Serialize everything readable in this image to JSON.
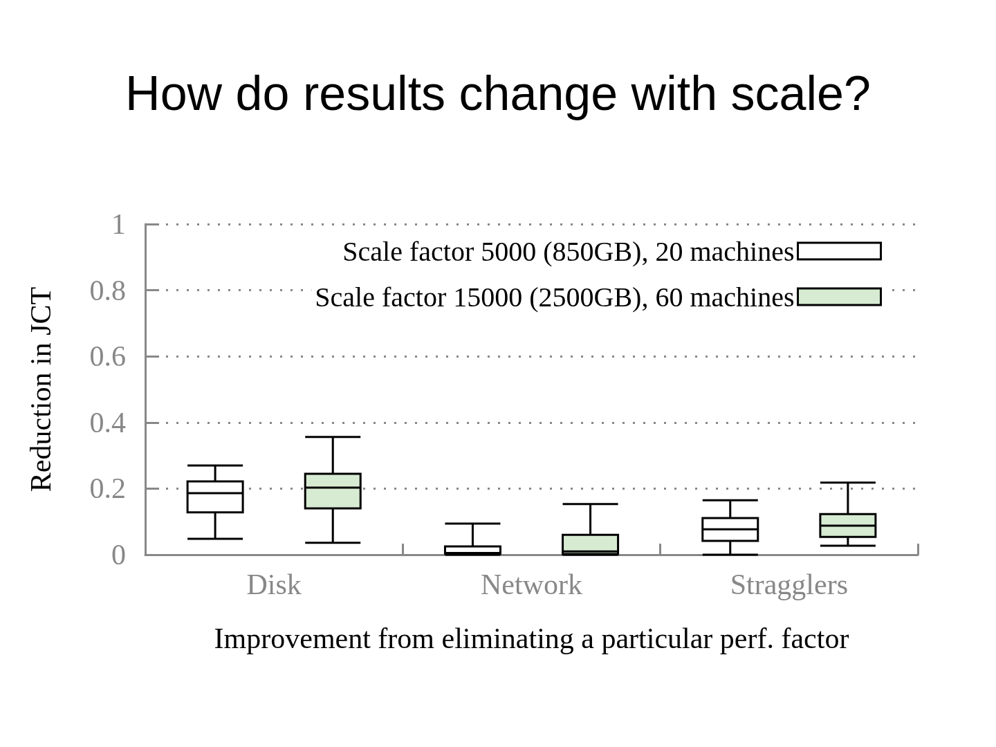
{
  "chart_data": {
    "type": "box",
    "title": "How do results change with scale?",
    "xlabel": "Improvement from eliminating a particular perf. factor",
    "ylabel": "Reduction in JCT",
    "categories": [
      "Disk",
      "Network",
      "Stragglers"
    ],
    "series": [
      {
        "name": "Scale factor 5000 (850GB), 20 machines",
        "color": "#ffffff",
        "boxes": [
          {
            "low": 0.048,
            "q1": 0.128,
            "median": 0.186,
            "q3": 0.222,
            "high": 0.27
          },
          {
            "low": 0,
            "q1": 0.003,
            "median": 0.005,
            "q3": 0.025,
            "high": 0.094
          },
          {
            "low": 0,
            "q1": 0.042,
            "median": 0.077,
            "q3": 0.111,
            "high": 0.165
          }
        ]
      },
      {
        "name": "Scale factor 15000 (2500GB), 60 machines",
        "color": "#d6ebd2",
        "boxes": [
          {
            "low": 0.036,
            "q1": 0.14,
            "median": 0.203,
            "q3": 0.245,
            "high": 0.356
          },
          {
            "low": 0,
            "q1": 0.002,
            "median": 0.01,
            "q3": 0.06,
            "high": 0.153
          },
          {
            "low": 0.027,
            "q1": 0.054,
            "median": 0.088,
            "q3": 0.123,
            "high": 0.218
          }
        ]
      }
    ],
    "ylim": [
      0,
      1
    ],
    "yticks": [
      0,
      0.2,
      0.4,
      0.6,
      0.8,
      1
    ],
    "grid": "y",
    "legend": "top right"
  }
}
